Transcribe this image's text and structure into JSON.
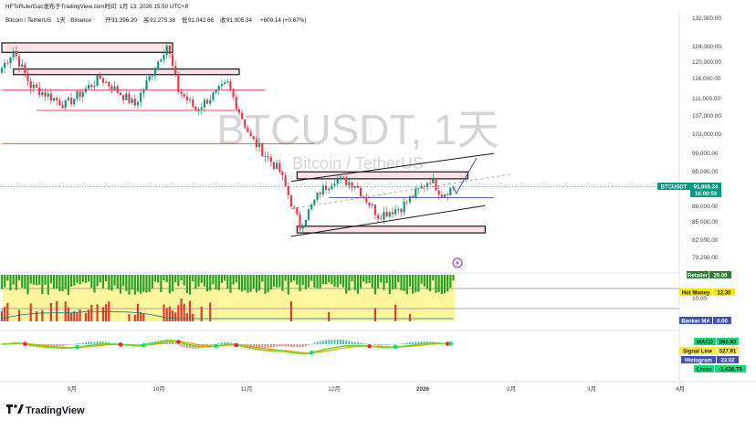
{
  "header": {
    "publish_line": "HFTsRulerGao发布于TradingView.com时间: 1月 13, 2026 15:50 UTC+8",
    "symbol": "Bitcoin / TetherUS · 1天 · Binance",
    "open_label": "开",
    "open": "91,296.20",
    "high_label": "高",
    "high": "92,275.38",
    "low_label": "低",
    "low": "91,042.66",
    "close_label": "收",
    "close": "91,905.34",
    "change": "+609.14 (+0.67%)",
    "up_color": "#089981",
    "down_color": "#f23645"
  },
  "watermark": {
    "ticker": "BTCUSDT, 1天",
    "name": "Bitcoin / TetherUS"
  },
  "price_axis": {
    "ticks": [
      "132,000.00",
      "124,000.00",
      "120,000.00",
      "116,000.00",
      "111,000.00",
      "107,000.00",
      "103,000.00",
      "99,000.00",
      "95,000.00",
      "88,000.00",
      "85,000.00",
      "82,000.00",
      "79,200.00"
    ]
  },
  "price_tag": {
    "symbol": "BTCUSDT",
    "price": "91,905.34",
    "countdown": "16:09:53",
    "color": "#089981"
  },
  "time_axis": {
    "ticks": [
      "9月",
      "10月",
      "11月",
      "12月",
      "2026",
      "2月",
      "3月",
      "4月"
    ]
  },
  "indicator_tags": {
    "retailer": {
      "label": "Retailer",
      "value": "20.00",
      "color": "#2e7d32"
    },
    "hot_money": {
      "label": "Hot Money",
      "value": "12.30",
      "color": "#f6e600"
    },
    "banker_ma": {
      "label": "Banker MA",
      "value": "0.00",
      "color": "#3f51b5"
    },
    "ten_label": "10.00"
  },
  "macd_tags": {
    "macd": {
      "label": "MACD",
      "value": "560.93",
      "color": "#00e676"
    },
    "signal": {
      "label": "Signal Line",
      "value": "527.91",
      "color": "#ffeb3b"
    },
    "histogram": {
      "label": "Histogram",
      "value": "33.02",
      "color": "#3f51b5"
    },
    "cross": {
      "label": "Cross",
      "value": "-1,638.79",
      "color": "#00e676"
    }
  },
  "branding": {
    "logo_text": "TradingView"
  },
  "chart_data": {
    "type": "candlestick",
    "interval": "1天",
    "y_scale": "log",
    "ylim": [
      78000,
      134000
    ],
    "x_range": [
      "2025-08-10",
      "2026-04-25"
    ],
    "anchors": [
      {
        "date": "2025-08-10",
        "close": 118500
      },
      {
        "date": "2025-08-14",
        "close": 123000
      },
      {
        "date": "2025-08-20",
        "close": 114000
      },
      {
        "date": "2025-09-01",
        "close": 109500
      },
      {
        "date": "2025-09-13",
        "close": 116000
      },
      {
        "date": "2025-09-25",
        "close": 109500
      },
      {
        "date": "2025-10-06",
        "close": 124500
      },
      {
        "date": "2025-10-10",
        "close": 113000
      },
      {
        "date": "2025-10-16",
        "close": 108500
      },
      {
        "date": "2025-10-27",
        "close": 114500
      },
      {
        "date": "2025-11-04",
        "close": 102000
      },
      {
        "date": "2025-11-14",
        "close": 95000
      },
      {
        "date": "2025-11-21",
        "close": 84500
      },
      {
        "date": "2025-11-28",
        "close": 91000
      },
      {
        "date": "2025-12-03",
        "close": 93500
      },
      {
        "date": "2025-12-10",
        "close": 92500
      },
      {
        "date": "2025-12-18",
        "close": 86500
      },
      {
        "date": "2025-12-26",
        "close": 88000
      },
      {
        "date": "2026-01-05",
        "close": 93500
      },
      {
        "date": "2026-01-09",
        "close": 90500
      },
      {
        "date": "2026-01-13",
        "close": 91905
      }
    ],
    "zones": [
      {
        "from": "2025-08-10",
        "to": "2025-10-08",
        "low": 122500,
        "high": 125000
      },
      {
        "from": "2025-08-14",
        "to": "2025-10-31",
        "low": 116800,
        "high": 118200
      },
      {
        "from": "2025-11-20",
        "to": "2026-01-18",
        "low": 93500,
        "high": 94900
      },
      {
        "from": "2025-11-20",
        "to": "2026-01-24",
        "low": 83300,
        "high": 84500
      }
    ],
    "horizontal_lines": [
      {
        "from": "2025-08-10",
        "to": "2025-11-09",
        "price": 113000,
        "color": "#f23645"
      },
      {
        "from": "2025-08-22",
        "to": "2025-10-31",
        "price": 108200,
        "color": "#f23645"
      },
      {
        "from": "2025-08-10",
        "to": "2025-11-26",
        "price": 100800,
        "color": "#f23645"
      },
      {
        "from": "2025-12-01",
        "to": "2026-01-27",
        "price": 89800,
        "color": "#3f51b5"
      }
    ],
    "channel": [
      {
        "from": {
          "date": "2025-11-18",
          "price": 93000
        },
        "to": {
          "date": "2026-01-27",
          "price": 98700
        }
      },
      {
        "from": {
          "date": "2025-11-18",
          "price": 82700
        },
        "to": {
          "date": "2026-01-24",
          "price": 88300
        }
      }
    ],
    "projection": [
      {
        "date": "2026-01-13",
        "price": 91905
      },
      {
        "date": "2026-01-14",
        "price": 90600
      },
      {
        "date": "2026-01-21",
        "price": 97700
      }
    ],
    "indicator_series": [
      {
        "name": "Retailer",
        "value": 20.0
      },
      {
        "name": "Hot Money",
        "value": 12.3
      },
      {
        "name": "Banker MA",
        "value": 0.0
      }
    ],
    "macd": {
      "macd": 560.93,
      "signal": 527.91,
      "histogram": 33.02,
      "cross": -1638.79
    }
  }
}
